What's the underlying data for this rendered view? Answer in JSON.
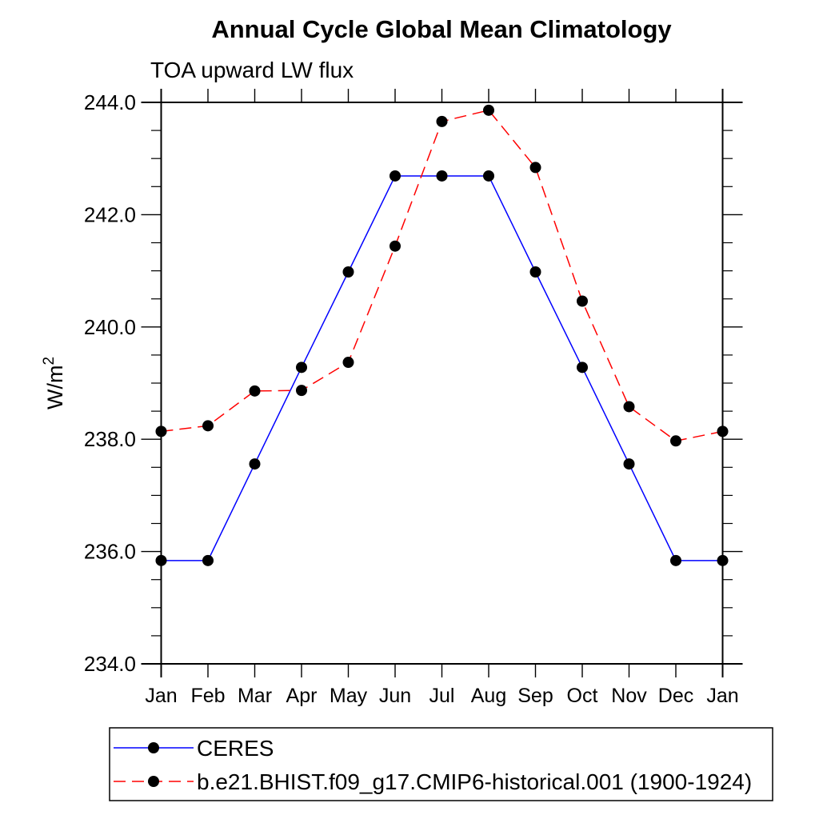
{
  "title": "Annual Cycle Global Mean Climatology",
  "subtitle": "TOA upward LW flux",
  "ylabel": {
    "text": "W/m",
    "sup": "2"
  },
  "chart_data": {
    "type": "line",
    "x_categories": [
      "Jan",
      "Feb",
      "Mar",
      "Apr",
      "May",
      "Jun",
      "Jul",
      "Aug",
      "Sep",
      "Oct",
      "Nov",
      "Dec",
      "Jan"
    ],
    "series": [
      {
        "name": "CERES",
        "color": "#0000ff",
        "line_style": "solid",
        "marker": "filled-circle",
        "marker_color": "#000000",
        "values": [
          235.84,
          235.84,
          237.56,
          239.28,
          240.98,
          242.69,
          242.69,
          242.69,
          240.98,
          239.28,
          237.56,
          235.84,
          235.84
        ]
      },
      {
        "name": "b.e21.BHIST.f09_g17.CMIP6-historical.001 (1900-1924)",
        "color": "#ff0000",
        "line_style": "dashed",
        "marker": "filled-circle",
        "marker_color": "#000000",
        "values": [
          238.14,
          238.24,
          238.86,
          238.87,
          239.37,
          241.44,
          243.66,
          243.86,
          242.84,
          240.46,
          238.58,
          237.97,
          238.14
        ]
      }
    ],
    "ylim": [
      234.0,
      244.0
    ],
    "y_major_interval": 2.0,
    "y_minor_interval": 0.5,
    "y_tick_labels": [
      "234.0",
      "236.0",
      "238.0",
      "240.0",
      "242.0",
      "244.0"
    ],
    "grid": false,
    "legend_position": "bottom-left"
  }
}
